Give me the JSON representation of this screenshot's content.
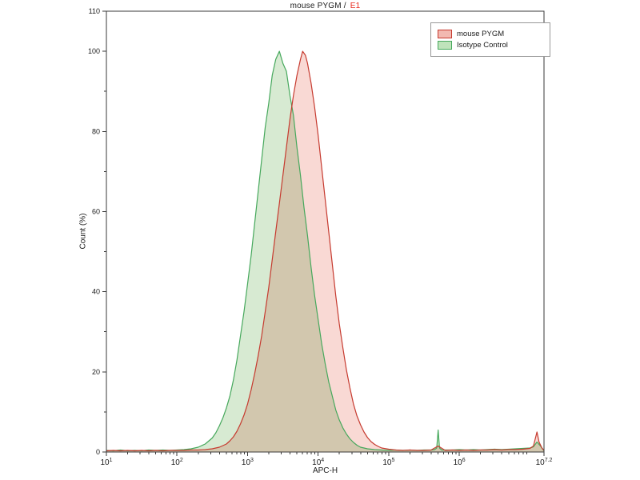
{
  "title": {
    "main": "mouse PYGM /",
    "accent": "E1"
  },
  "colors": {
    "accent": "#e8291c",
    "axis": "#3a3a3a",
    "text": "#1a1a1a",
    "red_stroke": "#c63a2f",
    "green_stroke": "#46a85c"
  },
  "chart_data": {
    "type": "area",
    "title": "mouse PYGM / E1",
    "xlabel": "APC-H",
    "ylabel": "Count  (%)",
    "x_scale": "log10",
    "xlim_log": [
      1,
      7.2
    ],
    "ylim": [
      0,
      110
    ],
    "x_tick_exponents": [
      1,
      2,
      3,
      4,
      5,
      6,
      7.2
    ],
    "y_ticks": [
      0,
      20,
      40,
      60,
      80,
      100,
      110
    ],
    "y_minor_ticks": [
      10,
      30,
      50,
      70,
      90
    ],
    "grid": false,
    "legend_position": "top-right",
    "series": [
      {
        "name": "mouse PYGM",
        "stroke": "#c63a2f",
        "fill": "#f9d9d4",
        "swatch_fill": "#f2b9b1",
        "peak_x_log": 3.78,
        "peak_y": 100,
        "points": [
          [
            1.0,
            0.3
          ],
          [
            1.1,
            0.4
          ],
          [
            1.2,
            0.3
          ],
          [
            1.3,
            0.4
          ],
          [
            1.4,
            0.3
          ],
          [
            1.5,
            0.4
          ],
          [
            1.6,
            0.3
          ],
          [
            1.7,
            0.4
          ],
          [
            1.8,
            0.3
          ],
          [
            1.9,
            0.4
          ],
          [
            2.0,
            0.4
          ],
          [
            2.1,
            0.4
          ],
          [
            2.2,
            0.5
          ],
          [
            2.3,
            0.5
          ],
          [
            2.4,
            0.6
          ],
          [
            2.5,
            0.8
          ],
          [
            2.6,
            1.2
          ],
          [
            2.7,
            2.0
          ],
          [
            2.75,
            2.8
          ],
          [
            2.8,
            3.8
          ],
          [
            2.85,
            5.2
          ],
          [
            2.9,
            7.0
          ],
          [
            2.95,
            9.2
          ],
          [
            3.0,
            12
          ],
          [
            3.05,
            15.5
          ],
          [
            3.1,
            19.5
          ],
          [
            3.15,
            24
          ],
          [
            3.2,
            29
          ],
          [
            3.25,
            35
          ],
          [
            3.3,
            41
          ],
          [
            3.35,
            48
          ],
          [
            3.4,
            55
          ],
          [
            3.45,
            62
          ],
          [
            3.5,
            69
          ],
          [
            3.55,
            76
          ],
          [
            3.6,
            83
          ],
          [
            3.65,
            89
          ],
          [
            3.7,
            94
          ],
          [
            3.75,
            98
          ],
          [
            3.78,
            100
          ],
          [
            3.82,
            99
          ],
          [
            3.85,
            97
          ],
          [
            3.9,
            92
          ],
          [
            3.95,
            86
          ],
          [
            4.0,
            79
          ],
          [
            4.05,
            71
          ],
          [
            4.1,
            63
          ],
          [
            4.15,
            55
          ],
          [
            4.2,
            47
          ],
          [
            4.25,
            39
          ],
          [
            4.3,
            32
          ],
          [
            4.35,
            26
          ],
          [
            4.4,
            20.5
          ],
          [
            4.45,
            16
          ],
          [
            4.5,
            12
          ],
          [
            4.55,
            9
          ],
          [
            4.6,
            6.8
          ],
          [
            4.65,
            5
          ],
          [
            4.7,
            3.6
          ],
          [
            4.75,
            2.6
          ],
          [
            4.8,
            1.9
          ],
          [
            4.85,
            1.4
          ],
          [
            4.9,
            1.0
          ],
          [
            5.0,
            0.7
          ],
          [
            5.1,
            0.5
          ],
          [
            5.2,
            0.4
          ],
          [
            5.3,
            0.5
          ],
          [
            5.4,
            0.4
          ],
          [
            5.5,
            0.4
          ],
          [
            5.6,
            0.5
          ],
          [
            5.7,
            1.5
          ],
          [
            5.8,
            0.4
          ],
          [
            5.9,
            0.5
          ],
          [
            6.0,
            0.4
          ],
          [
            6.1,
            0.5
          ],
          [
            6.2,
            0.4
          ],
          [
            6.3,
            0.5
          ],
          [
            6.4,
            0.5
          ],
          [
            6.5,
            0.6
          ],
          [
            6.6,
            0.5
          ],
          [
            6.7,
            0.6
          ],
          [
            6.8,
            0.6
          ],
          [
            6.9,
            0.7
          ],
          [
            7.0,
            0.9
          ],
          [
            7.05,
            1.5
          ],
          [
            7.1,
            5.0
          ],
          [
            7.13,
            2.5
          ],
          [
            7.17,
            1.0
          ],
          [
            7.2,
            0.4
          ]
        ]
      },
      {
        "name": "Isotype Control",
        "stroke": "#46a85c",
        "fill": "#d7ead2",
        "swatch_fill": "#bfe3bb",
        "peak_x_log": 3.45,
        "peak_y": 100,
        "points": [
          [
            1.0,
            0.4
          ],
          [
            1.1,
            0.3
          ],
          [
            1.2,
            0.5
          ],
          [
            1.3,
            0.3
          ],
          [
            1.4,
            0.4
          ],
          [
            1.5,
            0.3
          ],
          [
            1.6,
            0.5
          ],
          [
            1.7,
            0.4
          ],
          [
            1.8,
            0.5
          ],
          [
            1.9,
            0.4
          ],
          [
            2.0,
            0.5
          ],
          [
            2.1,
            0.6
          ],
          [
            2.2,
            0.8
          ],
          [
            2.3,
            1.2
          ],
          [
            2.4,
            2.0
          ],
          [
            2.5,
            3.5
          ],
          [
            2.55,
            4.8
          ],
          [
            2.6,
            6.5
          ],
          [
            2.65,
            8.5
          ],
          [
            2.7,
            11
          ],
          [
            2.75,
            14
          ],
          [
            2.8,
            18
          ],
          [
            2.85,
            23
          ],
          [
            2.9,
            29
          ],
          [
            2.95,
            35
          ],
          [
            3.0,
            42
          ],
          [
            3.05,
            49
          ],
          [
            3.1,
            57
          ],
          [
            3.15,
            65
          ],
          [
            3.2,
            73
          ],
          [
            3.25,
            81
          ],
          [
            3.3,
            87
          ],
          [
            3.35,
            94
          ],
          [
            3.4,
            98
          ],
          [
            3.45,
            100
          ],
          [
            3.5,
            97
          ],
          [
            3.55,
            95
          ],
          [
            3.6,
            89
          ],
          [
            3.65,
            84
          ],
          [
            3.7,
            76
          ],
          [
            3.75,
            69
          ],
          [
            3.8,
            61
          ],
          [
            3.85,
            54
          ],
          [
            3.9,
            46
          ],
          [
            3.95,
            39
          ],
          [
            4.0,
            33
          ],
          [
            4.05,
            27
          ],
          [
            4.1,
            22
          ],
          [
            4.15,
            17.5
          ],
          [
            4.2,
            14
          ],
          [
            4.25,
            10.5
          ],
          [
            4.3,
            8
          ],
          [
            4.35,
            6
          ],
          [
            4.4,
            4.5
          ],
          [
            4.45,
            3.3
          ],
          [
            4.5,
            2.4
          ],
          [
            4.55,
            1.7
          ],
          [
            4.6,
            1.2
          ],
          [
            4.7,
            0.8
          ],
          [
            4.8,
            0.6
          ],
          [
            4.9,
            0.5
          ],
          [
            5.0,
            0.4
          ],
          [
            5.1,
            0.5
          ],
          [
            5.2,
            0.4
          ],
          [
            5.3,
            0.5
          ],
          [
            5.4,
            0.4
          ],
          [
            5.5,
            0.5
          ],
          [
            5.6,
            0.5
          ],
          [
            5.65,
            0.6
          ],
          [
            5.68,
            1.0
          ],
          [
            5.7,
            5.5
          ],
          [
            5.72,
            1.0
          ],
          [
            5.75,
            0.5
          ],
          [
            5.9,
            0.5
          ],
          [
            6.0,
            0.6
          ],
          [
            6.1,
            0.5
          ],
          [
            6.2,
            0.6
          ],
          [
            6.3,
            0.5
          ],
          [
            6.4,
            0.6
          ],
          [
            6.5,
            0.7
          ],
          [
            6.6,
            0.6
          ],
          [
            6.7,
            0.7
          ],
          [
            6.8,
            0.8
          ],
          [
            6.9,
            0.9
          ],
          [
            7.0,
            1.0
          ],
          [
            7.05,
            1.3
          ],
          [
            7.1,
            2.5
          ],
          [
            7.15,
            1.5
          ],
          [
            7.2,
            0.3
          ]
        ]
      }
    ]
  }
}
